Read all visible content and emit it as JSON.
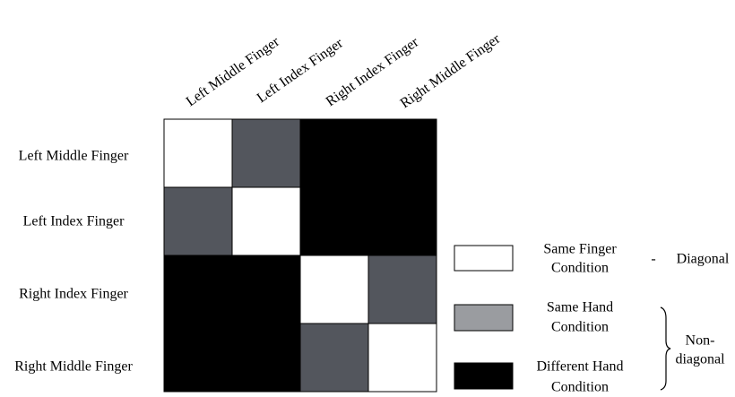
{
  "labels": [
    "Left Middle Finger",
    "Left Index Finger",
    "Right Index Finger",
    "Right Middle Finger"
  ],
  "legend": [
    {
      "lines": [
        "Same Finger",
        "Condition"
      ]
    },
    {
      "lines": [
        "Same Hand",
        "Condition"
      ]
    },
    {
      "lines": [
        "Different Hand",
        "Condition"
      ]
    }
  ],
  "diagonal": {
    "dash": "-",
    "label": "Diagonal"
  },
  "non_diagonal": {
    "lines": [
      "Non-",
      "diagonal"
    ]
  }
}
